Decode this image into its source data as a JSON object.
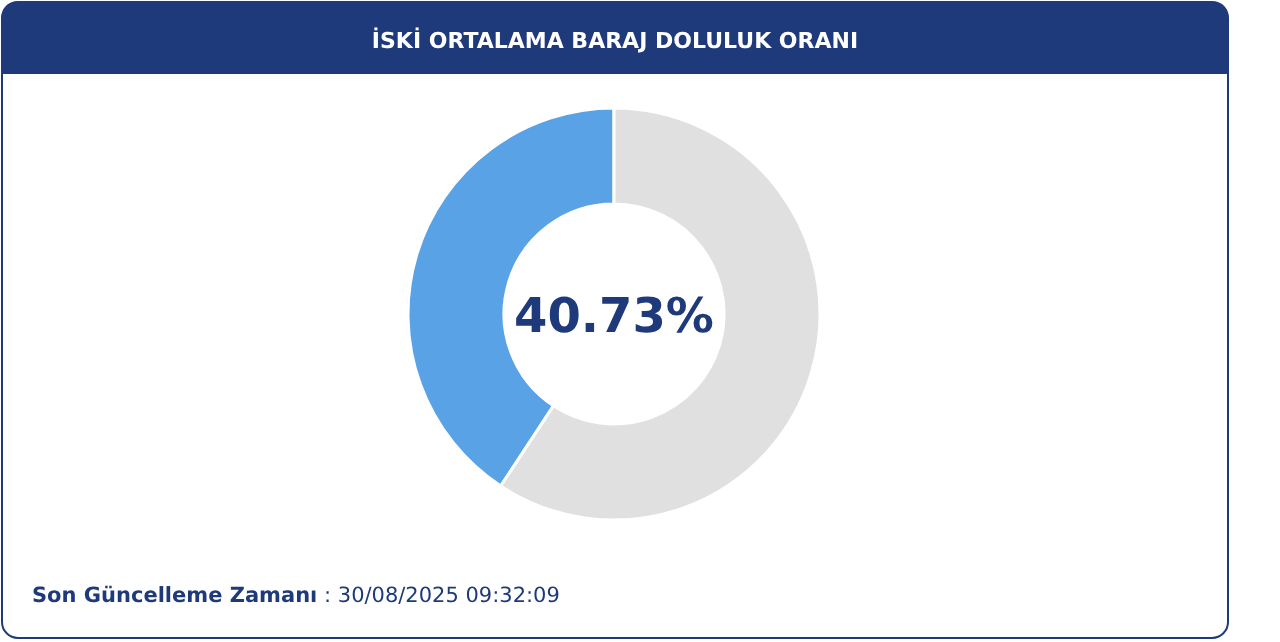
{
  "chart_data": {
    "type": "donut",
    "title": "İSKİ ORTALAMA BARAJ DOLULUK ORANI",
    "categories": [
      null,
      null
    ],
    "values": [
      40.73,
      59.27
    ],
    "colors": [
      "#5aa2e6",
      "#e0e0e0"
    ],
    "annotations": [
      "40.73%",
      "Son Güncelleme Zamanı : 30/08/2025 09:32:09"
    ]
  }
}
